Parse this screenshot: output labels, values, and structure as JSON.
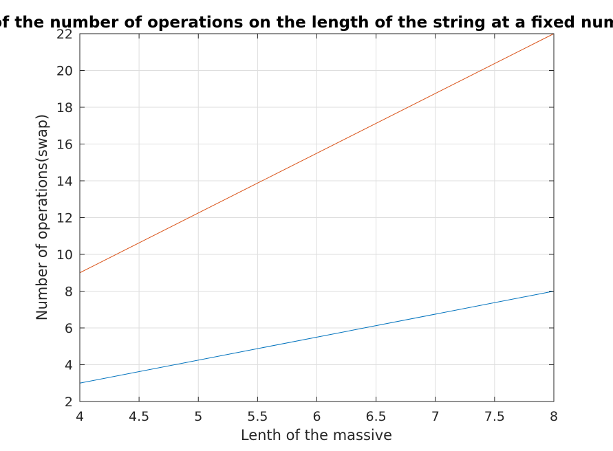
{
  "chart_data": {
    "type": "line",
    "title": "Dependence of the number of operations on the length of the string at a fixed number of searches",
    "xlabel": "Lenth of the massive",
    "ylabel": "Number of operations(swap)",
    "xlim": [
      4,
      8
    ],
    "ylim": [
      2,
      22
    ],
    "xticks": [
      4,
      4.5,
      5,
      5.5,
      6,
      6.5,
      7,
      7.5,
      8
    ],
    "xtick_labels": [
      "4",
      "4.5",
      "5",
      "5.5",
      "6",
      "6.5",
      "7",
      "7.5",
      "8"
    ],
    "yticks": [
      2,
      4,
      6,
      8,
      10,
      12,
      14,
      16,
      18,
      20,
      22
    ],
    "ytick_labels": [
      "2",
      "4",
      "6",
      "8",
      "10",
      "12",
      "14",
      "16",
      "18",
      "20",
      "22"
    ],
    "grid": true,
    "series": [
      {
        "x": [
          4,
          8
        ],
        "values": [
          3,
          8
        ],
        "color": "#0072BD"
      },
      {
        "x": [
          4,
          8
        ],
        "values": [
          9,
          22
        ],
        "color": "#D95319"
      }
    ]
  }
}
